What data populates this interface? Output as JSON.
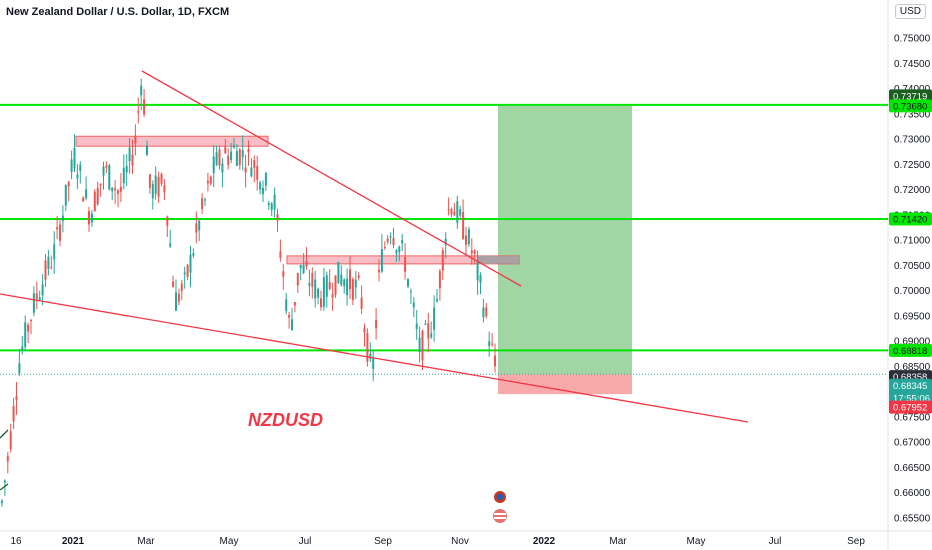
{
  "header": {
    "title": "New Zealand Dollar / U.S. Dollar, 1D, FXCM",
    "currency": "USD"
  },
  "annotation": {
    "symbol": "NZDUSD"
  },
  "colors": {
    "up": "#26a69a",
    "down": "#ef5350",
    "support_line": "#00e600",
    "trendline": "#f23645",
    "target_zone": "#81c784",
    "stop_zone": "#f7a1a1",
    "zone_box": "#f8b7c3",
    "gray_box": "#9e9e9e"
  },
  "chart_data": {
    "type": "candlestick",
    "title": "New Zealand Dollar / U.S. Dollar, 1D, FXCM",
    "ylim": [
      0.653,
      0.755
    ],
    "y_ticks": [
      "0.75000",
      "0.74500",
      "0.74000",
      "0.73500",
      "0.73000",
      "0.72500",
      "0.72000",
      "0.71500",
      "0.71000",
      "0.70500",
      "0.70000",
      "0.69500",
      "0.69000",
      "0.68500",
      "0.68000",
      "0.67500",
      "0.67000",
      "0.66500",
      "0.66000",
      "0.65500"
    ],
    "x_ticks": [
      {
        "label": "16",
        "bold": false
      },
      {
        "label": "2021",
        "bold": true
      },
      {
        "label": "Mar",
        "bold": false
      },
      {
        "label": "May",
        "bold": false
      },
      {
        "label": "Jul",
        "bold": false
      },
      {
        "label": "Sep",
        "bold": false
      },
      {
        "label": "Nov",
        "bold": false
      },
      {
        "label": "2022",
        "bold": true
      },
      {
        "label": "Mar",
        "bold": false
      },
      {
        "label": "May",
        "bold": false
      },
      {
        "label": "Jul",
        "bold": false
      },
      {
        "label": "Sep",
        "bold": false
      }
    ],
    "horizontal_levels": [
      0.7368,
      0.7142,
      0.68818
    ],
    "price_badges": [
      {
        "value": "0.73719",
        "bg": "#1b5e20",
        "fg": "#ffffff"
      },
      {
        "value": "0.73680",
        "bg": "#00e600",
        "fg": "#131722"
      },
      {
        "value": "0.71420",
        "bg": "#00e600",
        "fg": "#131722"
      },
      {
        "value": "0.68818",
        "bg": "#00e600",
        "fg": "#131722"
      },
      {
        "value": "0.68358",
        "bg": "#2a2e39",
        "fg": "#ffffff"
      },
      {
        "value": "0.68345",
        "bg": "#26a69a",
        "fg": "#ffffff",
        "sub": "17:55:06"
      },
      {
        "value": "0.67952",
        "bg": "#f23645",
        "fg": "#ffffff"
      }
    ],
    "zones": {
      "resistance_box_top": 0.73,
      "resistance_box_bottom": 0.729,
      "mid_box_top": 0.7065,
      "mid_box_bottom": 0.705,
      "target_top": 0.7368,
      "target_bottom": 0.68345,
      "stop_top": 0.68345,
      "stop_bottom": 0.67952
    },
    "last_price": 0.68345
  }
}
